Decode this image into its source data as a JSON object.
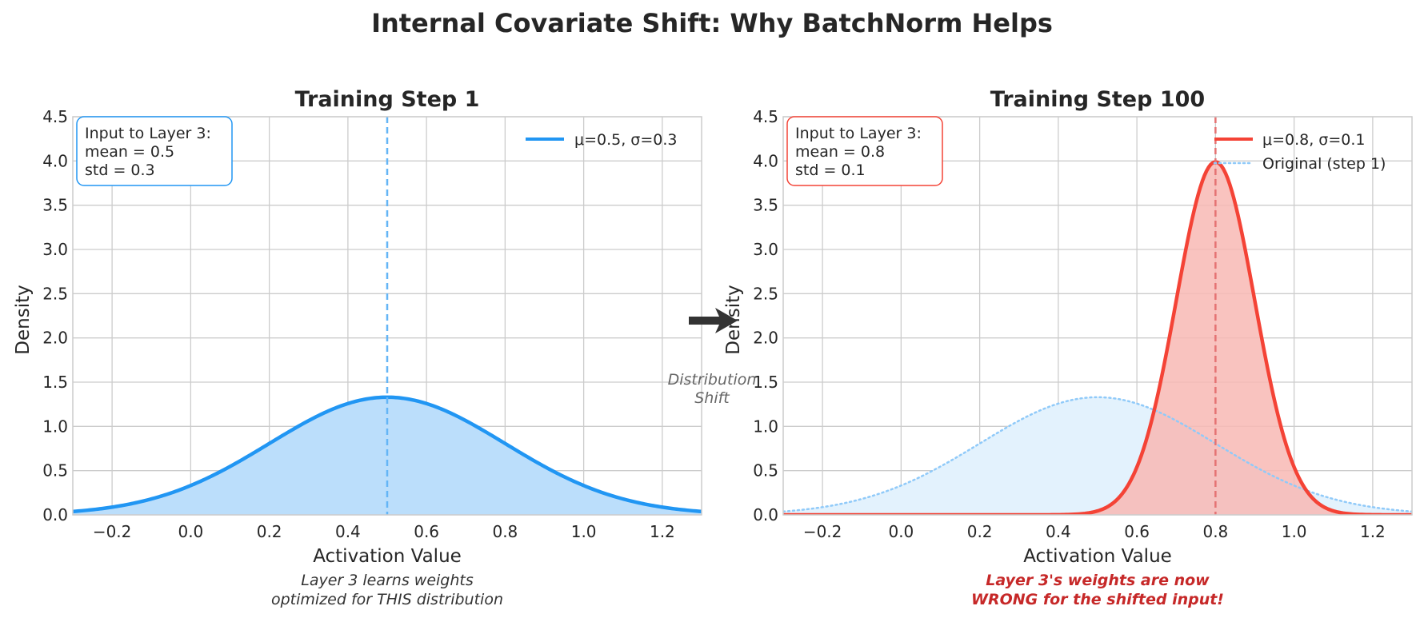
{
  "figure": {
    "suptitle": "Internal Covariate Shift: Why BatchNorm Helps",
    "arrow_label_line1": "Distribution",
    "arrow_label_line2": "Shift"
  },
  "colors": {
    "blue": "#2196f3",
    "blue_fill": "#bbdefb",
    "blue_light_fill": "#e3f2fd",
    "blue_vline": "#64b5f6",
    "red": "#f44336",
    "red_fill": "#f8b9b4",
    "red_vline": "#e57373",
    "dotted_blue": "#90caf9",
    "caption_red": "#c62828"
  },
  "chart_data": [
    {
      "type": "line",
      "title": "Training Step 1",
      "xlabel": "Activation Value",
      "ylabel": "Density",
      "xlim": [
        -0.3,
        1.3
      ],
      "ylim": [
        0,
        4.5
      ],
      "xticks": [
        -0.2,
        0.0,
        0.2,
        0.4,
        0.6,
        0.8,
        1.0,
        1.2
      ],
      "xtick_labels": [
        "−0.2",
        "0.0",
        "0.2",
        "0.4",
        "0.6",
        "0.8",
        "1.0",
        "1.2"
      ],
      "yticks": [
        0.0,
        0.5,
        1.0,
        1.5,
        2.0,
        2.5,
        3.0,
        3.5,
        4.0,
        4.5
      ],
      "ytick_labels": [
        "0.0",
        "0.5",
        "1.0",
        "1.5",
        "2.0",
        "2.5",
        "3.0",
        "3.5",
        "4.0",
        "4.5"
      ],
      "grid": true,
      "legend_position": "top-right",
      "series": [
        {
          "name": "μ=0.5, σ=0.3",
          "distribution": "normal",
          "mean": 0.5,
          "std": 0.3,
          "style": "solid",
          "filled": true
        }
      ],
      "mean_line": 0.5,
      "annotation": {
        "line1": "Input to Layer 3:",
        "line2": "mean = 0.5",
        "line3": "std = 0.3"
      },
      "caption": {
        "line1": "Layer 3 learns weights",
        "line2": "optimized for THIS distribution"
      }
    },
    {
      "type": "line",
      "title": "Training Step 100",
      "xlabel": "Activation Value",
      "ylabel": "Density",
      "xlim": [
        -0.3,
        1.3
      ],
      "ylim": [
        0,
        4.5
      ],
      "xticks": [
        -0.2,
        0.0,
        0.2,
        0.4,
        0.6,
        0.8,
        1.0,
        1.2
      ],
      "xtick_labels": [
        "−0.2",
        "0.0",
        "0.2",
        "0.4",
        "0.6",
        "0.8",
        "1.0",
        "1.2"
      ],
      "yticks": [
        0.0,
        0.5,
        1.0,
        1.5,
        2.0,
        2.5,
        3.0,
        3.5,
        4.0,
        4.5
      ],
      "ytick_labels": [
        "0.0",
        "0.5",
        "1.0",
        "1.5",
        "2.0",
        "2.5",
        "3.0",
        "3.5",
        "4.0",
        "4.5"
      ],
      "grid": true,
      "legend_position": "top-right",
      "series": [
        {
          "name": "μ=0.8, σ=0.1",
          "distribution": "normal",
          "mean": 0.8,
          "std": 0.1,
          "style": "solid",
          "filled": true
        },
        {
          "name": "Original (step 1)",
          "distribution": "normal",
          "mean": 0.5,
          "std": 0.3,
          "style": "dotted",
          "filled": true
        }
      ],
      "mean_line": 0.8,
      "annotation": {
        "line1": "Input to Layer 3:",
        "line2": "mean = 0.8",
        "line3": "std = 0.1"
      },
      "caption": {
        "line1": "Layer 3's weights are now",
        "line2": "WRONG for the shifted input!"
      }
    }
  ]
}
